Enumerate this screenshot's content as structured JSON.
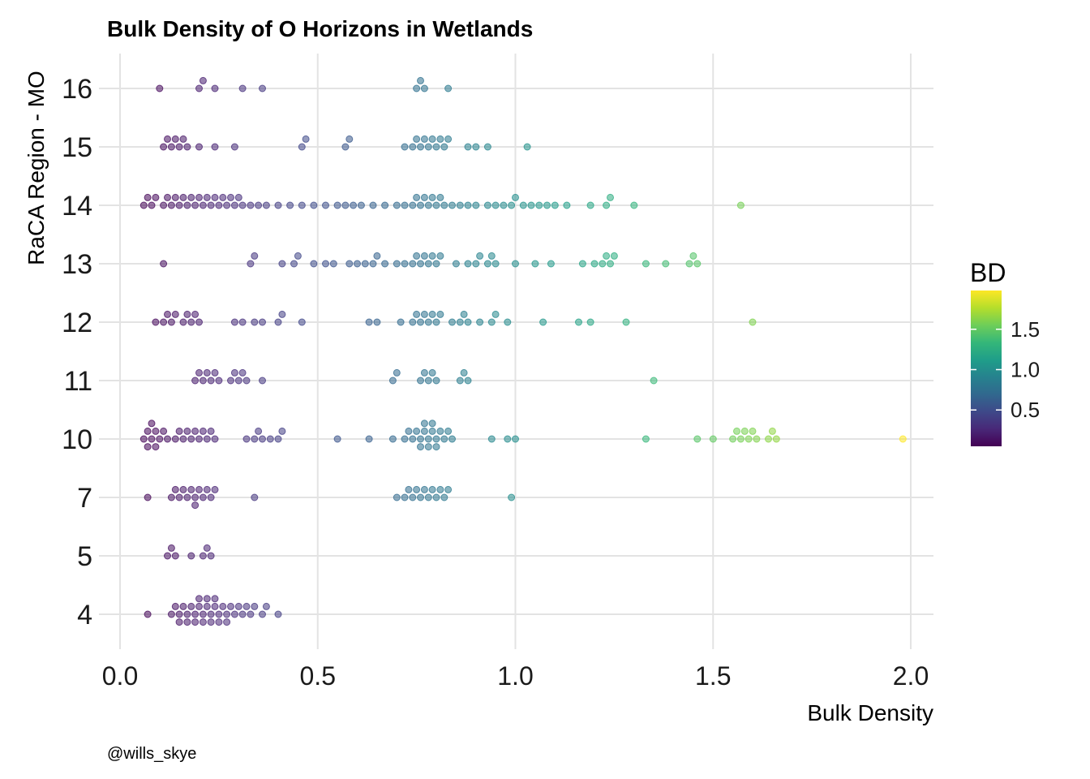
{
  "chart_data": {
    "type": "scatter",
    "subtype": "beeswarm",
    "title": "Bulk Density of O Horizons in Wetlands",
    "xlabel": "Bulk Density",
    "ylabel": "RaCA Region - MO",
    "xlim": [
      0,
      2.0
    ],
    "x_ticks": [
      "0.0",
      "0.5",
      "1.0",
      "1.5",
      "2.0"
    ],
    "x_tick_values": [
      0,
      0.5,
      1.0,
      1.5,
      2.0
    ],
    "categories": [
      "4",
      "5",
      "7",
      "10",
      "11",
      "12",
      "13",
      "14",
      "15",
      "16"
    ],
    "grid": true,
    "color_scale": {
      "title": "BD",
      "palette": "viridis",
      "range": [
        0.05,
        1.98
      ],
      "ticks": [
        "0.5",
        "1.0",
        "1.5"
      ],
      "tick_values": [
        0.5,
        1.0,
        1.5
      ],
      "colors": [
        "#440154",
        "#482878",
        "#3e4989",
        "#31688e",
        "#26828e",
        "#1f9e89",
        "#35b779",
        "#6ece58",
        "#b5de2b",
        "#fde725"
      ]
    },
    "caption": "@wills_skye",
    "series": [
      {
        "category": "4",
        "values": [
          0.07,
          0.13,
          0.14,
          0.15,
          0.15,
          0.16,
          0.17,
          0.17,
          0.18,
          0.19,
          0.19,
          0.2,
          0.2,
          0.21,
          0.21,
          0.22,
          0.22,
          0.23,
          0.23,
          0.24,
          0.24,
          0.25,
          0.25,
          0.26,
          0.27,
          0.27,
          0.28,
          0.29,
          0.3,
          0.31,
          0.32,
          0.33,
          0.34,
          0.36,
          0.37,
          0.4
        ]
      },
      {
        "category": "5",
        "values": [
          0.12,
          0.13,
          0.14,
          0.18,
          0.21,
          0.22,
          0.23
        ]
      },
      {
        "category": "7",
        "values": [
          0.07,
          0.13,
          0.14,
          0.15,
          0.16,
          0.17,
          0.18,
          0.19,
          0.19,
          0.2,
          0.21,
          0.22,
          0.23,
          0.24,
          0.34,
          0.7,
          0.72,
          0.73,
          0.74,
          0.75,
          0.76,
          0.77,
          0.78,
          0.79,
          0.8,
          0.81,
          0.82,
          0.83,
          0.99
        ]
      },
      {
        "category": "10",
        "values": [
          0.06,
          0.07,
          0.07,
          0.08,
          0.08,
          0.09,
          0.09,
          0.1,
          0.11,
          0.12,
          0.14,
          0.15,
          0.16,
          0.17,
          0.18,
          0.19,
          0.2,
          0.21,
          0.22,
          0.23,
          0.24,
          0.32,
          0.34,
          0.35,
          0.36,
          0.38,
          0.4,
          0.41,
          0.55,
          0.63,
          0.69,
          0.72,
          0.73,
          0.74,
          0.75,
          0.76,
          0.76,
          0.77,
          0.77,
          0.78,
          0.78,
          0.79,
          0.79,
          0.8,
          0.8,
          0.81,
          0.82,
          0.83,
          0.84,
          0.94,
          0.98,
          1.0,
          1.33,
          1.46,
          1.5,
          1.55,
          1.56,
          1.57,
          1.58,
          1.59,
          1.6,
          1.61,
          1.64,
          1.65,
          1.66,
          1.98
        ]
      },
      {
        "category": "11",
        "values": [
          0.19,
          0.2,
          0.21,
          0.22,
          0.23,
          0.24,
          0.25,
          0.28,
          0.29,
          0.3,
          0.31,
          0.32,
          0.36,
          0.69,
          0.7,
          0.76,
          0.77,
          0.78,
          0.79,
          0.8,
          0.86,
          0.87,
          0.88,
          1.35
        ]
      },
      {
        "category": "12",
        "values": [
          0.09,
          0.11,
          0.12,
          0.13,
          0.14,
          0.16,
          0.17,
          0.18,
          0.19,
          0.2,
          0.29,
          0.31,
          0.34,
          0.36,
          0.4,
          0.41,
          0.46,
          0.63,
          0.65,
          0.71,
          0.74,
          0.75,
          0.76,
          0.77,
          0.78,
          0.79,
          0.8,
          0.81,
          0.84,
          0.86,
          0.87,
          0.88,
          0.91,
          0.94,
          0.95,
          0.98,
          1.07,
          1.16,
          1.19,
          1.28,
          1.6
        ]
      },
      {
        "category": "13",
        "values": [
          0.11,
          0.33,
          0.34,
          0.41,
          0.44,
          0.45,
          0.49,
          0.52,
          0.54,
          0.58,
          0.6,
          0.62,
          0.64,
          0.65,
          0.67,
          0.7,
          0.72,
          0.74,
          0.75,
          0.76,
          0.77,
          0.78,
          0.79,
          0.8,
          0.81,
          0.85,
          0.88,
          0.9,
          0.91,
          0.93,
          0.94,
          0.95,
          1.0,
          1.05,
          1.09,
          1.17,
          1.2,
          1.22,
          1.23,
          1.24,
          1.25,
          1.33,
          1.38,
          1.44,
          1.45,
          1.46
        ]
      },
      {
        "category": "14",
        "values": [
          0.06,
          0.07,
          0.08,
          0.09,
          0.11,
          0.12,
          0.13,
          0.14,
          0.15,
          0.16,
          0.17,
          0.18,
          0.19,
          0.2,
          0.21,
          0.22,
          0.23,
          0.24,
          0.25,
          0.26,
          0.27,
          0.28,
          0.29,
          0.3,
          0.31,
          0.33,
          0.35,
          0.37,
          0.4,
          0.43,
          0.46,
          0.49,
          0.52,
          0.55,
          0.57,
          0.59,
          0.61,
          0.64,
          0.67,
          0.7,
          0.72,
          0.74,
          0.75,
          0.76,
          0.77,
          0.78,
          0.79,
          0.8,
          0.81,
          0.82,
          0.84,
          0.86,
          0.88,
          0.9,
          0.93,
          0.95,
          0.97,
          0.99,
          1.0,
          1.02,
          1.04,
          1.06,
          1.08,
          1.1,
          1.13,
          1.19,
          1.23,
          1.24,
          1.3,
          1.57
        ]
      },
      {
        "category": "15",
        "values": [
          0.11,
          0.12,
          0.13,
          0.14,
          0.15,
          0.16,
          0.17,
          0.2,
          0.24,
          0.29,
          0.46,
          0.47,
          0.57,
          0.58,
          0.72,
          0.74,
          0.75,
          0.76,
          0.77,
          0.78,
          0.79,
          0.8,
          0.81,
          0.82,
          0.83,
          0.88,
          0.9,
          0.93,
          1.03
        ]
      },
      {
        "category": "16",
        "values": [
          0.1,
          0.2,
          0.21,
          0.24,
          0.31,
          0.36,
          0.75,
          0.76,
          0.77,
          0.83
        ]
      }
    ]
  }
}
